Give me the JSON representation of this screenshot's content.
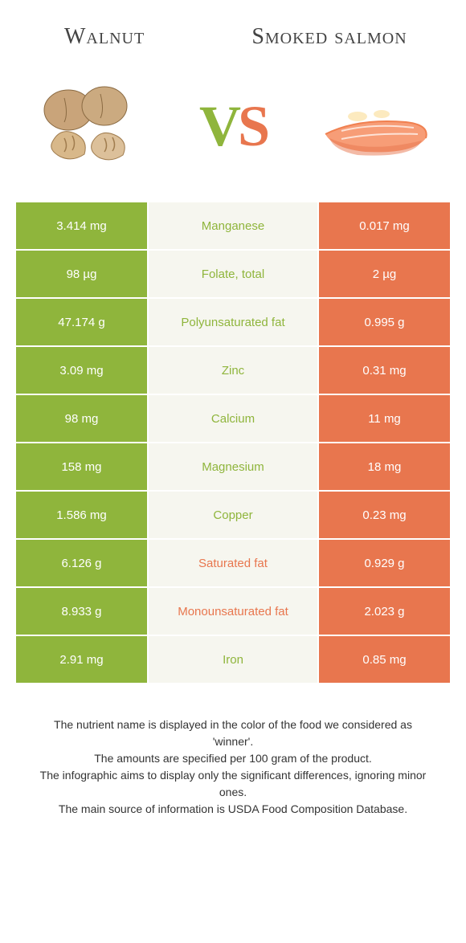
{
  "header": {
    "left_title": "Walnut",
    "right_title": "Smoked salmon"
  },
  "vs": {
    "v": "V",
    "s": "S"
  },
  "colors": {
    "left_bg": "#8fb53c",
    "right_bg": "#e8764e",
    "mid_bg": "#f6f6ef",
    "left_text": "#8fb53c",
    "right_text": "#e8764e"
  },
  "rows": [
    {
      "left": "3.414 mg",
      "label": "Manganese",
      "right": "0.017 mg",
      "winner": "left"
    },
    {
      "left": "98 µg",
      "label": "Folate, total",
      "right": "2 µg",
      "winner": "left"
    },
    {
      "left": "47.174 g",
      "label": "Polyunsaturated fat",
      "right": "0.995 g",
      "winner": "left"
    },
    {
      "left": "3.09 mg",
      "label": "Zinc",
      "right": "0.31 mg",
      "winner": "left"
    },
    {
      "left": "98 mg",
      "label": "Calcium",
      "right": "11 mg",
      "winner": "left"
    },
    {
      "left": "158 mg",
      "label": "Magnesium",
      "right": "18 mg",
      "winner": "left"
    },
    {
      "left": "1.586 mg",
      "label": "Copper",
      "right": "0.23 mg",
      "winner": "left"
    },
    {
      "left": "6.126 g",
      "label": "Saturated fat",
      "right": "0.929 g",
      "winner": "right"
    },
    {
      "left": "8.933 g",
      "label": "Monounsaturated fat",
      "right": "2.023 g",
      "winner": "right"
    },
    {
      "left": "2.91 mg",
      "label": "Iron",
      "right": "0.85 mg",
      "winner": "left"
    }
  ],
  "footer": {
    "line1": "The nutrient name is displayed in the color of the food we considered as 'winner'.",
    "line2": "The amounts are specified per 100 gram of the product.",
    "line3": "The infographic aims to display only the significant differences, ignoring minor ones.",
    "line4": "The main source of information is USDA Food Composition Database."
  }
}
